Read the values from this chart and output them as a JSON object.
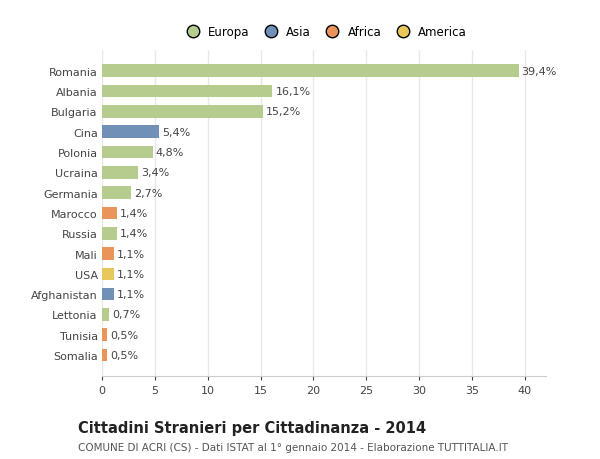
{
  "countries": [
    "Romania",
    "Albania",
    "Bulgaria",
    "Cina",
    "Polonia",
    "Ucraina",
    "Germania",
    "Marocco",
    "Russia",
    "Mali",
    "USA",
    "Afghanistan",
    "Lettonia",
    "Tunisia",
    "Somalia"
  ],
  "values": [
    39.4,
    16.1,
    15.2,
    5.4,
    4.8,
    3.4,
    2.7,
    1.4,
    1.4,
    1.1,
    1.1,
    1.1,
    0.7,
    0.5,
    0.5
  ],
  "labels": [
    "39,4%",
    "16,1%",
    "15,2%",
    "5,4%",
    "4,8%",
    "3,4%",
    "2,7%",
    "1,4%",
    "1,4%",
    "1,1%",
    "1,1%",
    "1,1%",
    "0,7%",
    "0,5%",
    "0,5%"
  ],
  "continents": [
    "Europa",
    "Europa",
    "Europa",
    "Asia",
    "Europa",
    "Europa",
    "Europa",
    "Africa",
    "Europa",
    "Africa",
    "America",
    "Asia",
    "Europa",
    "Africa",
    "Africa"
  ],
  "colors": {
    "Europa": "#b5cc8e",
    "Asia": "#7090b8",
    "Africa": "#e8945a",
    "America": "#e8c85a"
  },
  "legend_order": [
    "Europa",
    "Asia",
    "Africa",
    "America"
  ],
  "legend_colors": [
    "#b5cc8e",
    "#7090b8",
    "#e8945a",
    "#e8c85a"
  ],
  "xlim": [
    0,
    42
  ],
  "xticks": [
    0,
    5,
    10,
    15,
    20,
    25,
    30,
    35,
    40
  ],
  "title": "Cittadini Stranieri per Cittadinanza - 2014",
  "subtitle": "COMUNE DI ACRI (CS) - Dati ISTAT al 1° gennaio 2014 - Elaborazione TUTTITALIA.IT",
  "bg_color": "#ffffff",
  "bar_height": 0.62,
  "grid_color": "#e8e8e8",
  "label_fontsize": 8,
  "tick_fontsize": 8,
  "title_fontsize": 10.5,
  "subtitle_fontsize": 7.5,
  "legend_fontsize": 8.5
}
